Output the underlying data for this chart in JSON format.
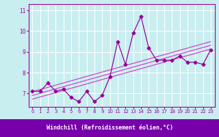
{
  "xlabel": "Windchill (Refroidissement éolien,°C)",
  "background_color": "#c8eef0",
  "axis_label_bg": "#7700aa",
  "line_color": "#990099",
  "grid_color": "#ffffff",
  "x_data": [
    0,
    1,
    2,
    3,
    4,
    5,
    6,
    7,
    8,
    9,
    10,
    11,
    12,
    13,
    14,
    15,
    16,
    17,
    18,
    19,
    20,
    21,
    22,
    23
  ],
  "y_data": [
    7.1,
    7.1,
    7.5,
    7.1,
    7.2,
    6.8,
    6.6,
    7.1,
    6.6,
    6.9,
    7.8,
    9.5,
    8.4,
    9.9,
    10.7,
    9.2,
    8.6,
    8.6,
    8.6,
    8.8,
    8.5,
    8.5,
    8.4,
    9.1
  ],
  "ylim": [
    6.35,
    11.3
  ],
  "xlim": [
    -0.5,
    23.5
  ],
  "yticks": [
    7,
    8,
    9,
    10,
    11
  ],
  "xticks": [
    0,
    1,
    2,
    3,
    4,
    5,
    6,
    7,
    8,
    9,
    10,
    11,
    12,
    13,
    14,
    15,
    16,
    17,
    18,
    19,
    20,
    21,
    22,
    23
  ],
  "trend_offsets": [
    0.0,
    0.18,
    -0.18
  ],
  "trend_color": "#cc44cc"
}
